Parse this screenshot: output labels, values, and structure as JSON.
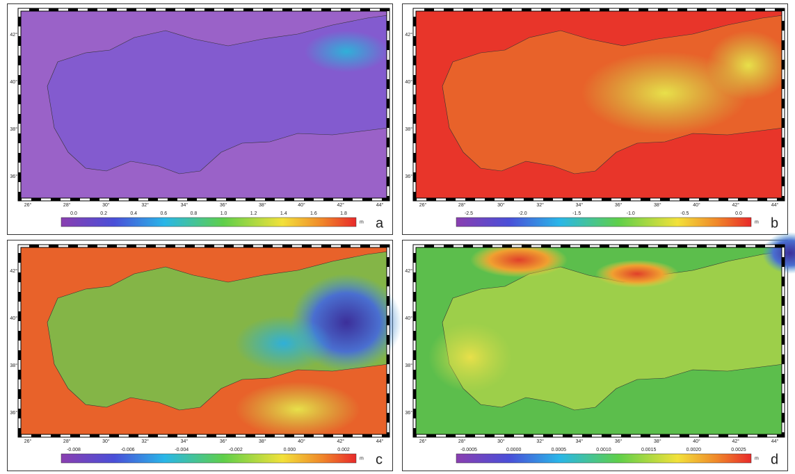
{
  "lon_labels": [
    "26°",
    "28°",
    "30°",
    "32°",
    "34°",
    "36°",
    "38°",
    "40°",
    "42°",
    "44°"
  ],
  "lat_labels": [
    "42°",
    "40°",
    "38°",
    "36°"
  ],
  "panels": [
    {
      "label": "a",
      "unit": "m",
      "colorbar_ticks": [
        "0.0",
        "0.2",
        "0.4",
        "0.6",
        "0.8",
        "1.0",
        "1.2",
        "1.4",
        "1.6",
        "1.8"
      ]
    },
    {
      "label": "b",
      "unit": "m",
      "colorbar_ticks": [
        "-2.5",
        "-2.0",
        "-1.5",
        "-1.0",
        "-0.5",
        "0.0"
      ]
    },
    {
      "label": "c",
      "unit": "m",
      "colorbar_ticks": [
        "-0.008",
        "-0.006",
        "-0.004",
        "-0.002",
        "0.000",
        "0.002"
      ]
    },
    {
      "label": "d",
      "unit": "m",
      "colorbar_ticks": [
        "-0.0005",
        "0.0000",
        "0.0005",
        "0.0010",
        "0.0015",
        "0.0020",
        "0.0025"
      ]
    }
  ]
}
